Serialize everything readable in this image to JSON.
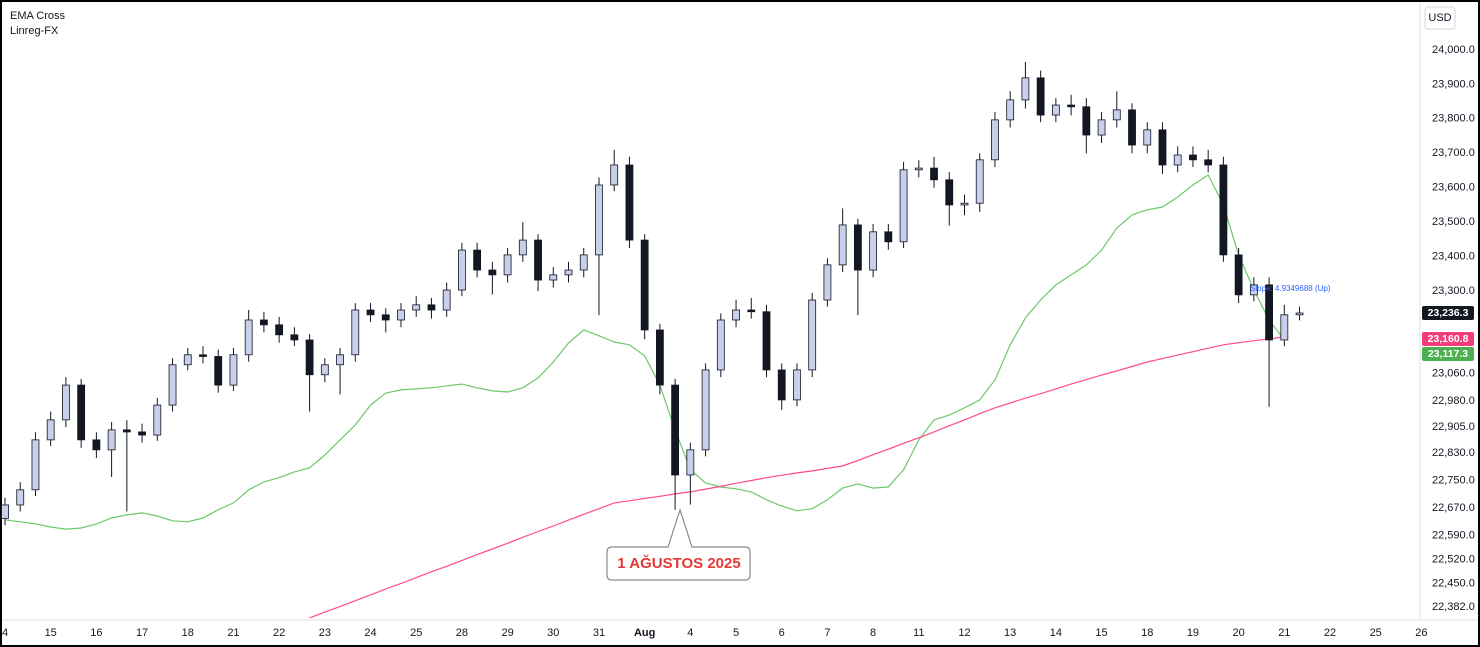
{
  "chart_data": {
    "type": "candlestick",
    "indicators": [
      "EMA Cross",
      "Linreg-FX"
    ],
    "currency": "USD",
    "annotation": "1 AĞUSTOS 2025",
    "slope_label": "Slope: 4.9349688 (Up)",
    "categories": [
      "4",
      null,
      null,
      "15",
      null,
      null,
      "16",
      null,
      null,
      "17",
      null,
      null,
      "18",
      null,
      null,
      "21",
      null,
      null,
      "22",
      null,
      null,
      "23",
      null,
      null,
      "24",
      null,
      null,
      "25",
      null,
      null,
      "28",
      null,
      null,
      "29",
      null,
      null,
      "30",
      null,
      null,
      "31",
      null,
      null,
      "Aug",
      null,
      null,
      "4",
      null,
      null,
      "5",
      null,
      null,
      "6",
      null,
      null,
      "7",
      null,
      null,
      "8",
      null,
      null,
      "11",
      null,
      null,
      "12",
      null,
      null,
      "13",
      null,
      null,
      "14",
      null,
      null,
      "15",
      null,
      null,
      "18",
      null,
      null,
      "19",
      null,
      null,
      "20",
      null,
      null,
      "21",
      null,
      null,
      "22",
      null,
      null,
      "25",
      null,
      null,
      "26"
    ],
    "open": [
      22640,
      22679,
      22723,
      22868,
      22926,
      23027,
      22868,
      22839,
      22897,
      22891,
      22882,
      22969,
      23086,
      23115,
      23110,
      23027,
      23115,
      23216,
      23202,
      23173,
      23158,
      23057,
      23086,
      23115,
      23245,
      23231,
      23216,
      23245,
      23260,
      23245,
      23303,
      23419,
      23361,
      23347,
      23405,
      23448,
      23332,
      23347,
      23361,
      23405,
      23608,
      23666,
      23448,
      23187,
      23027,
      22766,
      22839,
      23071,
      23216,
      23245,
      23240,
      23071,
      22984,
      23071,
      23274,
      23376,
      23492,
      23361,
      23472,
      23443,
      23652,
      23657,
      23623,
      23550,
      23555,
      23681,
      23797,
      23855,
      23919,
      23811,
      23840,
      23835,
      23753,
      23797,
      23826,
      23724,
      23768,
      23666,
      23695,
      23681,
      23666,
      23405,
      23289,
      23318,
      23158,
      23231,
      null,
      null,
      null,
      null,
      null,
      null,
      null,
      null
    ],
    "high": [
      22700,
      22745,
      22890,
      22950,
      23050,
      23045,
      22890,
      22920,
      22925,
      22915,
      22990,
      23105,
      23135,
      23140,
      23130,
      23135,
      23245,
      23240,
      23225,
      23195,
      23175,
      23105,
      23135,
      23265,
      23265,
      23250,
      23265,
      23285,
      23280,
      23325,
      23440,
      23440,
      23385,
      23425,
      23500,
      23465,
      23370,
      23385,
      23425,
      23630,
      23710,
      23690,
      23465,
      23205,
      23045,
      22860,
      23090,
      23235,
      23275,
      23280,
      23260,
      23090,
      23090,
      23295,
      23395,
      23540,
      23510,
      23495,
      23495,
      23675,
      23680,
      23690,
      23645,
      23580,
      23700,
      23820,
      23880,
      23965,
      23940,
      23860,
      23870,
      23860,
      23820,
      23880,
      23845,
      23790,
      23790,
      23720,
      23720,
      23710,
      23690,
      23425,
      23340,
      23340,
      23260,
      23255,
      null,
      null,
      null,
      null,
      null,
      null,
      null,
      null
    ],
    "low": [
      22620,
      22660,
      22705,
      22850,
      22905,
      22845,
      22815,
      22760,
      22660,
      22860,
      22865,
      22950,
      23070,
      23090,
      23005,
      23010,
      23095,
      23180,
      23150,
      23140,
      22950,
      23035,
      23000,
      23095,
      23210,
      23180,
      23195,
      23225,
      23220,
      23225,
      23285,
      23340,
      23290,
      23325,
      23385,
      23300,
      23310,
      23325,
      23340,
      23230,
      23590,
      23425,
      23160,
      23000,
      22665,
      22680,
      22820,
      23050,
      23195,
      23220,
      23050,
      22955,
      22965,
      23050,
      23255,
      23355,
      23230,
      23340,
      23420,
      23425,
      23630,
      23600,
      23490,
      23520,
      23530,
      23660,
      23775,
      23830,
      23790,
      23790,
      23810,
      23700,
      23730,
      23775,
      23700,
      23700,
      23640,
      23645,
      23660,
      23645,
      23385,
      23265,
      23270,
      22964,
      23140,
      23215,
      null,
      null,
      null,
      null,
      null,
      null,
      null,
      null
    ],
    "close": [
      22679,
      22723,
      22868,
      22926,
      23027,
      22868,
      22839,
      22897,
      22891,
      22882,
      22969,
      23086,
      23115,
      23110,
      23027,
      23115,
      23216,
      23202,
      23173,
      23158,
      23057,
      23086,
      23115,
      23245,
      23231,
      23216,
      23245,
      23260,
      23245,
      23303,
      23419,
      23361,
      23347,
      23405,
      23448,
      23332,
      23347,
      23361,
      23405,
      23608,
      23666,
      23448,
      23187,
      23027,
      22766,
      22839,
      23071,
      23216,
      23245,
      23240,
      23071,
      22984,
      23071,
      23274,
      23376,
      23492,
      23361,
      23472,
      23443,
      23652,
      23657,
      23623,
      23550,
      23555,
      23681,
      23797,
      23855,
      23919,
      23811,
      23840,
      23835,
      23753,
      23797,
      23826,
      23724,
      23768,
      23666,
      23695,
      23681,
      23666,
      23405,
      23289,
      23318,
      23158,
      23231,
      23236.3,
      null,
      null,
      null,
      null,
      null,
      null,
      null,
      null
    ],
    "up_color": "#c9cfeb",
    "down_color": "#131722",
    "lines": [
      {
        "color": "#6cc96c",
        "values": [
          22636,
          22630,
          22624,
          22615,
          22609,
          22612,
          22624,
          22641,
          22650,
          22656,
          22647,
          22633,
          22630,
          22641,
          22665,
          22685,
          22723,
          22746,
          22758,
          22775,
          22787,
          22824,
          22868,
          22911,
          22969,
          23004,
          23013,
          23016,
          23019,
          23025,
          23030,
          23019,
          23010,
          23007,
          23019,
          23048,
          23094,
          23149,
          23187,
          23170,
          23152,
          23144,
          23112,
          23027,
          22897,
          22781,
          22743,
          22731,
          22726,
          22717,
          22694,
          22676,
          22662,
          22668,
          22694,
          22728,
          22740,
          22728,
          22731,
          22781,
          22868,
          22926,
          22940,
          22961,
          22984,
          23042,
          23144,
          23222,
          23274,
          23318,
          23347,
          23376,
          23419,
          23483,
          23521,
          23536,
          23544,
          23573,
          23608,
          23637,
          23550,
          23405,
          23303,
          23216,
          23158,
          null,
          null,
          null,
          null,
          null,
          null,
          null,
          null,
          null
        ]
      },
      {
        "color": "#ff4b8b",
        "values": [
          null,
          null,
          null,
          null,
          null,
          null,
          null,
          null,
          null,
          null,
          null,
          null,
          null,
          null,
          null,
          null,
          null,
          null,
          null,
          null,
          22351,
          22368,
          22384,
          22401,
          22418,
          22435,
          22451,
          22468,
          22485,
          22501,
          22518,
          22535,
          22551,
          22568,
          22585,
          22602,
          22618,
          22635,
          22652,
          22668,
          22685,
          22691,
          22698,
          22704,
          22711,
          22717,
          22725,
          22733,
          22742,
          22750,
          22758,
          22765,
          22772,
          22778,
          22785,
          22792,
          22808,
          22825,
          22841,
          22858,
          22874,
          22891,
          22909,
          22926,
          22944,
          22961,
          22975,
          22989,
          23002,
          23016,
          23030,
          23043,
          23056,
          23068,
          23081,
          23094,
          23104,
          23114,
          23124,
          23134,
          23144,
          23150,
          23156,
          23161,
          23167,
          null,
          null,
          null,
          null,
          null,
          null,
          null,
          null,
          null
        ]
      }
    ],
    "price_labels": [
      {
        "value": 23236.3,
        "label": "23,236.3",
        "color": "#131722"
      },
      {
        "value": 23160.8,
        "label": "23,160.8",
        "color": "#f23d7a"
      },
      {
        "value": 23117.3,
        "label": "23,117.3",
        "color": "#4caf50"
      }
    ],
    "ylim": [
      22345,
      24145
    ],
    "yticks": [
      {
        "value": 24000,
        "label": "24,000.0"
      },
      {
        "value": 23900,
        "label": "23,900.0"
      },
      {
        "value": 23800,
        "label": "23,800.0"
      },
      {
        "value": 23700,
        "label": "23,700.0"
      },
      {
        "value": 23600,
        "label": "23,600.0"
      },
      {
        "value": 23500,
        "label": "23,500.0"
      },
      {
        "value": 23400,
        "label": "23,400.0"
      },
      {
        "value": 23300,
        "label": "23,300.0"
      },
      {
        "value": 23060,
        "label": "23,060.0"
      },
      {
        "value": 22980,
        "label": "22,980.0"
      },
      {
        "value": 22905,
        "label": "22,905.0"
      },
      {
        "value": 22830,
        "label": "22,830.0"
      },
      {
        "value": 22750,
        "label": "22,750.0"
      },
      {
        "value": 22670,
        "label": "22,670.0"
      },
      {
        "value": 22590,
        "label": "22,590.0"
      },
      {
        "value": 22520,
        "label": "22,520.0"
      },
      {
        "value": 22450,
        "label": "22,450.0"
      },
      {
        "value": 22382,
        "label": "22,382.0"
      }
    ],
    "grid": false
  }
}
